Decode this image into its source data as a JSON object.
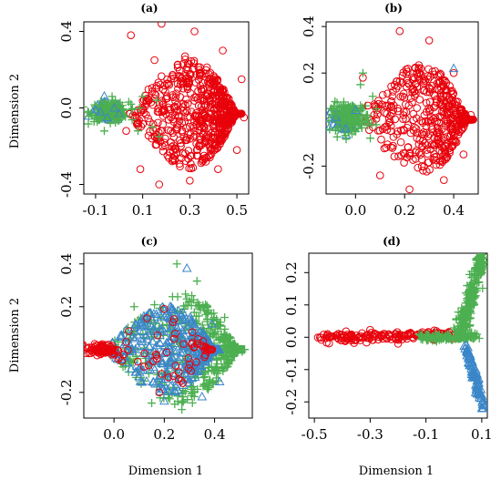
{
  "figure": {
    "ylabel_top": "Dimension 2",
    "ylabel_bottom": "Dimension 2",
    "xlabel_left": "Dimension 1",
    "xlabel_right": "Dimension 1"
  },
  "colors": {
    "red": "#e8000b",
    "green": "#4caf50",
    "blue": "#3a86c8"
  },
  "chart_data": [
    {
      "type": "scatter",
      "label": "(a)",
      "xlabel": "",
      "ylabel": "Dimension 2",
      "xlim": [
        -0.15,
        0.55
      ],
      "ylim": [
        -0.45,
        0.45
      ],
      "xticks": [
        "-0.1",
        "0.1",
        "0.3",
        "0.5"
      ],
      "xtick_values": [
        -0.1,
        0.1,
        0.3,
        0.5
      ],
      "yticks": [
        "-0.4",
        "0.0",
        "0.4"
      ],
      "ytick_values": [
        -0.4,
        0.0,
        0.4
      ],
      "grid": false,
      "series": [
        {
          "marker": "circle",
          "color": "#e8000b",
          "cloud": {
            "kind": "fan",
            "apex": [
              0.02,
              -0.03
            ],
            "right": 0.52,
            "yspread": 0.42,
            "n": 700
          }
        },
        {
          "marker": "triangle",
          "color": "#3a86c8",
          "cloud": {
            "kind": "blob",
            "center": [
              -0.05,
              -0.02
            ],
            "rx": 0.06,
            "ry": 0.05,
            "n": 80
          }
        },
        {
          "marker": "plus",
          "color": "#4caf50",
          "cloud": {
            "kind": "blob",
            "center": [
              -0.04,
              -0.02
            ],
            "rx": 0.08,
            "ry": 0.05,
            "n": 160
          }
        }
      ],
      "points": {
        "circle": [
          [
            0.05,
            0.38
          ],
          [
            0.18,
            0.44
          ],
          [
            0.32,
            0.4
          ],
          [
            0.44,
            0.3
          ],
          [
            0.52,
            0.15
          ],
          [
            0.53,
            -0.05
          ],
          [
            0.5,
            -0.22
          ],
          [
            0.42,
            -0.32
          ],
          [
            0.3,
            -0.38
          ],
          [
            0.17,
            -0.4
          ],
          [
            0.09,
            -0.32
          ],
          [
            0.03,
            -0.12
          ],
          [
            0.12,
            0.05
          ],
          [
            0.25,
            0.1
          ],
          [
            0.37,
            -0.05
          ],
          [
            0.22,
            -0.18
          ],
          [
            0.15,
            0.25
          ],
          [
            0.28,
            0.27
          ],
          [
            0.4,
            0.15
          ],
          [
            0.33,
            -0.22
          ]
        ],
        "triangle": [
          [
            -0.08,
            -0.02
          ],
          [
            -0.05,
            -0.05
          ],
          [
            -0.02,
            0.0
          ],
          [
            0.0,
            -0.03
          ],
          [
            -0.1,
            -0.01
          ]
        ],
        "plus": [
          [
            -0.12,
            -0.03
          ],
          [
            -0.06,
            0.03
          ],
          [
            0.0,
            -0.05
          ],
          [
            0.05,
            0.02
          ],
          [
            0.1,
            0.06
          ],
          [
            0.14,
            -0.1
          ],
          [
            0.08,
            -0.12
          ],
          [
            0.16,
            0.04
          ],
          [
            -0.03,
            0.06
          ],
          [
            0.17,
            -0.15
          ]
        ]
      }
    },
    {
      "type": "scatter",
      "label": "(b)",
      "xlabel": "",
      "ylabel": "",
      "xlim": [
        -0.12,
        0.5
      ],
      "ylim": [
        -0.32,
        0.42
      ],
      "xticks": [
        "0.0",
        "0.2",
        "0.4"
      ],
      "xtick_values": [
        0.0,
        0.2,
        0.4
      ],
      "yticks": [
        "-0.2",
        "0.2",
        "0.4"
      ],
      "ytick_values": [
        -0.2,
        0.2,
        0.4
      ],
      "grid": false,
      "series": [
        {
          "marker": "circle",
          "color": "#e8000b",
          "cloud": {
            "kind": "fan",
            "apex": [
              0.0,
              0.0
            ],
            "right": 0.48,
            "yspread": 0.35,
            "n": 500
          }
        },
        {
          "marker": "triangle",
          "color": "#3a86c8",
          "cloud": {
            "kind": "blob",
            "center": [
              -0.05,
              0.0
            ],
            "rx": 0.05,
            "ry": 0.05,
            "n": 90
          }
        },
        {
          "marker": "plus",
          "color": "#4caf50",
          "cloud": {
            "kind": "blob",
            "center": [
              -0.02,
              0.01
            ],
            "rx": 0.08,
            "ry": 0.06,
            "n": 170
          }
        }
      ],
      "points": {
        "circle": [
          [
            0.03,
            0.18
          ],
          [
            0.18,
            0.38
          ],
          [
            0.3,
            0.34
          ],
          [
            0.4,
            0.2
          ],
          [
            0.47,
            0.02
          ],
          [
            0.44,
            -0.15
          ],
          [
            0.36,
            -0.26
          ],
          [
            0.22,
            -0.3
          ],
          [
            0.1,
            -0.24
          ],
          [
            0.05,
            0.06
          ],
          [
            0.15,
            0.1
          ],
          [
            0.25,
            -0.08
          ]
        ],
        "triangle": [
          [
            0.4,
            0.22
          ],
          [
            -0.08,
            0.01
          ],
          [
            -0.04,
            -0.04
          ],
          [
            0.0,
            0.04
          ]
        ],
        "plus": [
          [
            0.02,
            0.15
          ],
          [
            0.06,
            -0.08
          ],
          [
            -0.08,
            0.02
          ],
          [
            0.03,
            0.2
          ],
          [
            0.07,
            0.1
          ]
        ]
      }
    },
    {
      "type": "scatter",
      "label": "(c)",
      "xlabel": "Dimension 1",
      "ylabel": "Dimension 2",
      "xlim": [
        -0.12,
        0.55
      ],
      "ylim": [
        -0.32,
        0.45
      ],
      "xticks": [
        "0.0",
        "0.2",
        "0.4"
      ],
      "xtick_values": [
        0.0,
        0.2,
        0.4
      ],
      "yticks": [
        "-0.2",
        "0.2",
        "0.4"
      ],
      "ytick_values": [
        -0.2,
        0.2,
        0.4
      ],
      "grid": false,
      "series": [
        {
          "marker": "plus",
          "color": "#4caf50",
          "cloud": {
            "kind": "fan",
            "apex": [
              -0.05,
              0.0
            ],
            "right": 0.52,
            "yspread": 0.38,
            "n": 500
          }
        },
        {
          "marker": "triangle",
          "color": "#3a86c8",
          "cloud": {
            "kind": "fan",
            "apex": [
              -0.05,
              0.0
            ],
            "right": 0.42,
            "yspread": 0.3,
            "n": 420
          }
        },
        {
          "marker": "circle",
          "color": "#e8000b",
          "cloud": {
            "kind": "blob",
            "center": [
              -0.05,
              0.0
            ],
            "rx": 0.06,
            "ry": 0.025,
            "n": 90
          }
        },
        {
          "marker": "circle",
          "color": "#e8000b",
          "cloud": {
            "kind": "fan",
            "apex": [
              -0.05,
              0.0
            ],
            "right": 0.4,
            "yspread": 0.28,
            "n": 60
          }
        }
      ],
      "points": {
        "plus": [
          [
            0.25,
            0.4
          ],
          [
            0.33,
            0.32
          ],
          [
            0.44,
            0.15
          ],
          [
            0.51,
            -0.01
          ],
          [
            0.37,
            -0.18
          ],
          [
            0.27,
            -0.28
          ],
          [
            0.15,
            -0.25
          ],
          [
            0.08,
            0.2
          ]
        ],
        "triangle": [
          [
            0.29,
            0.38
          ],
          [
            0.39,
            0.12
          ],
          [
            0.42,
            -0.15
          ],
          [
            0.35,
            -0.22
          ],
          [
            0.2,
            -0.24
          ]
        ],
        "circle": [
          [
            0.2,
            0.19
          ],
          [
            0.24,
            0.05
          ],
          [
            0.18,
            -0.2
          ],
          [
            0.3,
            -0.07
          ],
          [
            0.12,
            -0.08
          ]
        ]
      }
    },
    {
      "type": "scatter",
      "label": "(d)",
      "xlabel": "Dimension 1",
      "ylabel": "",
      "xlim": [
        -0.52,
        0.12
      ],
      "ylim": [
        -0.25,
        0.26
      ],
      "xticks": [
        "-0.5",
        "-0.3",
        "-0.1",
        "0.1"
      ],
      "xtick_values": [
        -0.5,
        -0.3,
        -0.1,
        0.1
      ],
      "yticks": [
        "-0.2",
        "-0.1",
        "0.0",
        "0.1",
        "0.2"
      ],
      "ytick_values": [
        -0.2,
        -0.1,
        0.0,
        0.1,
        0.2
      ],
      "grid": false,
      "series": [
        {
          "marker": "circle",
          "color": "#e8000b",
          "cloud": {
            "kind": "band",
            "from": [
              -0.48,
              0.0
            ],
            "to": [
              0.02,
              0.01
            ],
            "width": 0.015,
            "n": 180
          }
        },
        {
          "marker": "plus",
          "color": "#4caf50",
          "cloud": {
            "kind": "band",
            "from": [
              0.02,
              0.0
            ],
            "to": [
              0.1,
              0.25
            ],
            "width": 0.02,
            "n": 260
          }
        },
        {
          "marker": "plus",
          "color": "#4caf50",
          "cloud": {
            "kind": "band",
            "from": [
              -0.12,
              0.0
            ],
            "to": [
              0.08,
              0.0
            ],
            "width": 0.012,
            "n": 120
          }
        },
        {
          "marker": "triangle",
          "color": "#3a86c8",
          "cloud": {
            "kind": "band",
            "from": [
              0.04,
              -0.02
            ],
            "to": [
              0.11,
              -0.22
            ],
            "width": 0.01,
            "n": 90
          }
        }
      ],
      "points": {
        "circle": [
          [
            -0.48,
            0.0
          ],
          [
            -0.45,
            0.0
          ],
          [
            -0.39,
            -0.01
          ],
          [
            -0.2,
            -0.02
          ]
        ],
        "plus": [
          [
            0.08,
            0.24
          ],
          [
            0.09,
            0.22
          ],
          [
            0.1,
            0.2
          ]
        ],
        "triangle": [
          [
            0.1,
            -0.22
          ],
          [
            0.11,
            -0.21
          ]
        ]
      }
    }
  ]
}
